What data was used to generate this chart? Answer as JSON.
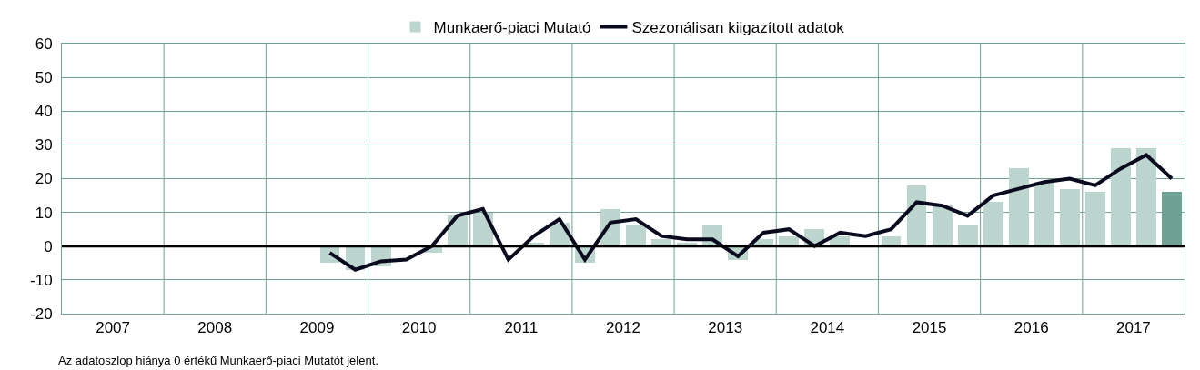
{
  "chart_data": {
    "type": "bar",
    "x": [
      2009.625,
      2009.875,
      2010.125,
      2010.375,
      2010.625,
      2010.875,
      2011.125,
      2011.375,
      2011.625,
      2011.875,
      2012.125,
      2012.375,
      2012.625,
      2012.875,
      2013.125,
      2013.375,
      2013.625,
      2013.875,
      2014.125,
      2014.375,
      2014.625,
      2014.875,
      2015.125,
      2015.375,
      2015.625,
      2015.875,
      2016.125,
      2016.375,
      2016.625,
      2016.875,
      2017.125,
      2017.375,
      2017.625,
      2017.875
    ],
    "series": [
      {
        "name": "Munkaerő-piaci Mutató",
        "color": "#6fa194",
        "colors": [
          "#bdd5cf",
          "#bdd5cf",
          "#bdd5cf",
          "#bdd5cf",
          "#bdd5cf",
          "#bdd5cf",
          "#bdd5cf",
          "#bdd5cf",
          "#bdd5cf",
          "#bdd5cf",
          "#bdd5cf",
          "#bdd5cf",
          "#bdd5cf",
          "#bdd5cf",
          "#bdd5cf",
          "#bdd5cf",
          "#bdd5cf",
          "#bdd5cf",
          "#bdd5cf",
          "#bdd5cf",
          "#bdd5cf",
          "#bdd5cf",
          "#bdd5cf",
          "#bdd5cf",
          "#bdd5cf",
          "#bdd5cf",
          "#bdd5cf",
          "#bdd5cf",
          "#bdd5cf",
          "#bdd5cf",
          "#bdd5cf",
          "#bdd5cf",
          "#bdd5cf",
          "#6fa194"
        ],
        "values": [
          -5,
          -7,
          -6,
          0,
          -2,
          9,
          10,
          0,
          1,
          7,
          -5,
          11,
          6,
          2,
          1,
          6,
          -4,
          2,
          3,
          5,
          3,
          0,
          3,
          18,
          12,
          6,
          13,
          23,
          19,
          17,
          16,
          29,
          29,
          16
        ]
      },
      {
        "name": "Szezonálisan kiigazított adatok",
        "type": "line",
        "color": "#0a0a1e",
        "values": [
          -2,
          -7,
          -4.5,
          -4,
          0,
          9,
          11,
          -4,
          3,
          8,
          -4,
          7,
          8,
          3,
          2,
          2,
          -3,
          4,
          5,
          0,
          4,
          3,
          5,
          13,
          12,
          9,
          15,
          17,
          19,
          20,
          18,
          23,
          27,
          20
        ]
      }
    ],
    "xlim": [
      2007,
      2018
    ],
    "xticks": [
      {
        "value": 2007.5,
        "label": "2007"
      },
      {
        "value": 2008,
        "label": null
      },
      {
        "value": 2008.5,
        "label": "2008"
      },
      {
        "value": 2009,
        "label": null
      },
      {
        "value": 2009.5,
        "label": "2009"
      },
      {
        "value": 2010,
        "label": null
      },
      {
        "value": 2010.5,
        "label": "2010"
      },
      {
        "value": 2011,
        "label": null
      },
      {
        "value": 2011.5,
        "label": "2011"
      },
      {
        "value": 2012,
        "label": null
      },
      {
        "value": 2012.5,
        "label": "2012"
      },
      {
        "value": 2013,
        "label": null
      },
      {
        "value": 2013.5,
        "label": "2013"
      },
      {
        "value": 2014,
        "label": null
      },
      {
        "value": 2014.5,
        "label": "2014"
      },
      {
        "value": 2015,
        "label": null
      },
      {
        "value": 2015.5,
        "label": "2015"
      },
      {
        "value": 2016,
        "label": null
      },
      {
        "value": 2016.5,
        "label": "2016"
      },
      {
        "value": 2017,
        "label": null
      },
      {
        "value": 2017.5,
        "label": "2017"
      }
    ],
    "ylim": [
      -20,
      60
    ],
    "yticks": [
      -20,
      -10,
      0,
      10,
      20,
      30,
      40,
      50,
      60
    ],
    "ref_lines": [
      {
        "axis": "y",
        "value": 0,
        "color": "#000000"
      }
    ],
    "grid": true,
    "legend": "top",
    "annotations": [
      "Az adatoszlop hiánya 0 értékű Munkaerő-piaci Mutatót jelent."
    ]
  }
}
